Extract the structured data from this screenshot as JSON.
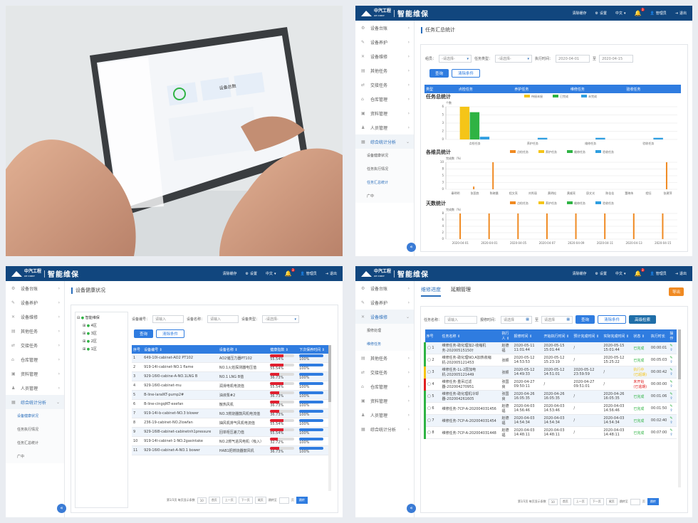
{
  "brand": {
    "logo": "中汽工程",
    "logo_sub": "AE CORP",
    "app": "智能维保"
  },
  "topbar": {
    "cleanup": "清除缓存",
    "settings": "设置",
    "lang": "中文",
    "notif": "3",
    "user": "管理员",
    "logout": "退出"
  },
  "photo": {
    "tablet_widget": "设备总数",
    "tablet_number": "1/7"
  },
  "menu": [
    {
      "icon": "gear-icon",
      "label": "设备台账"
    },
    {
      "icon": "wrench-icon",
      "label": "设备养护"
    },
    {
      "icon": "tools-icon",
      "label": "设备维修"
    },
    {
      "icon": "doc-icon",
      "label": "其他任务"
    },
    {
      "icon": "swap-icon",
      "label": "交接任务"
    },
    {
      "icon": "warehouse-icon",
      "label": "仓库管理"
    },
    {
      "icon": "folder-icon",
      "label": "资料管理"
    },
    {
      "icon": "people-icon",
      "label": "人员管理"
    },
    {
      "icon": "chart-icon",
      "label": "综合统计分析"
    }
  ],
  "stats_sub": [
    "设备健康状况",
    "任务执行情况",
    "任务汇总统计",
    "广中"
  ],
  "repair_sub": [
    "报修处理",
    "维修任务"
  ],
  "q2": {
    "crumb": "任务汇总统计",
    "filters": {
      "group_label": "组员：",
      "group_val": "-请选择-",
      "type_label": "任务类型：",
      "type_val": "-请选择-",
      "time_label": "执行时间：",
      "date_from": "2020-04-01",
      "sep": "至",
      "date_to": "2020-04-15"
    },
    "query": "查询",
    "clear": "清除条件",
    "head": [
      "类型",
      "点检任务",
      "养护任务",
      "维修任务",
      "验收任务"
    ],
    "c1": {
      "title": "任务总统计",
      "ylabel": "个数",
      "legend": [
        "待接未接",
        "已完成",
        "未完成"
      ],
      "groups": [
        "点检任务",
        "养护任务",
        "维修任务",
        "验收任务"
      ]
    },
    "c2": {
      "title": "各维员统计",
      "ylabel": "完成数（%）",
      "legend": [
        "点检任务",
        "养护任务",
        "维修任务",
        "验收任务"
      ],
      "names": [
        "秦明明",
        "张国良",
        "陈晓晨",
        "程文亮",
        "刘秀丽",
        "黄明松",
        "黄顺亮",
        "邱文光",
        "陈佳佳",
        "董晓伟",
        "程钰",
        "张建萍"
      ]
    },
    "c3": {
      "title": "天数统计",
      "ylabel": "完成数（%）",
      "legend": [
        "点检任务",
        "养护任务",
        "维修任务",
        "验收任务"
      ],
      "dates": [
        "2020-04-01",
        "2020-04-01",
        "2020-04-05",
        "2020-04-07",
        "2020-04-09",
        "2020-04-11",
        "2020-04-13",
        "2020-04-15"
      ]
    }
  },
  "q3": {
    "crumb": "设备健康状况",
    "tree": {
      "root": "智能维保",
      "nodes": [
        "4区",
        "3区",
        "2区",
        "1区"
      ]
    },
    "filters": {
      "no_label": "设备编号：",
      "no_ph": "请输入",
      "name_label": "设备名称：",
      "name_ph": "请输入",
      "type_label": "设备类型：",
      "type_val": "-请选择-"
    },
    "query": "查询",
    "clear": "清除条件",
    "cols": [
      "序号",
      "设备编号 ⇕",
      "设备名称 ⇕",
      "健康指数 ⇕",
      "下次保养时间 ⇕"
    ],
    "rows": [
      {
        "no": "1",
        "code": "649-10I-cabinet-AO2 PT102",
        "name": "AO2储压力器PT102",
        "health": "55.54%",
        "next": "100%"
      },
      {
        "no": "2",
        "code": "919-14I-cabinet-NO.1 flame",
        "name": "NO.1火焰探测器电压值",
        "health": "55.54%",
        "next": "100%"
      },
      {
        "no": "3",
        "code": "929-16I0-cabine-A-NO.1LNG B",
        "name": "NO.1 LNG B值",
        "health": "36.73%",
        "next": "100%"
      },
      {
        "no": "4",
        "code": "929-16I0-cabinet-mu",
        "name": "润滑电机电流值",
        "health": "55.54%",
        "next": "100%"
      },
      {
        "no": "5",
        "code": "B-line-laraIKT-pump2#",
        "name": "油液泵#2",
        "health": "36.73%",
        "next": "100%"
      },
      {
        "no": "6",
        "code": "B-line-cingqIKT-exefan",
        "name": "散热风机",
        "health": "36.73%",
        "next": "100%"
      },
      {
        "no": "7",
        "code": "919-14I-b-cabinet-NO.3 blower",
        "name": "NO.3燃烧器鼓风机电流值",
        "health": "36.73%",
        "next": "100%"
      },
      {
        "no": "8",
        "code": "236-19-cabinet-NO.2lowfan",
        "name": "抽风机排气风机电流值",
        "health": "55.54%",
        "next": "100%"
      },
      {
        "no": "9",
        "code": "929-16I8-cabinet-cabinetnh1pressure",
        "name": "回单柜压差力值",
        "health": "55.54%",
        "next": "100%"
      },
      {
        "no": "10",
        "code": "919-14I-cabinet-1-NO.2gasintake",
        "name": "NO.2燃气进风电机（吸入）",
        "health": "32.72%",
        "next": "100%"
      },
      {
        "no": "11",
        "code": "929-16I0-cabinet-A-NO.1 bower",
        "name": "HAB1把燃烧器鼓风机",
        "health": "36.73%",
        "next": "100%"
      }
    ],
    "pager": {
      "info": "第1/3页  每页显示条数",
      "size": "10",
      "first": "首页",
      "prev": "上一页",
      "next": "下一页",
      "last": "尾页",
      "jump": "跳转至",
      "page": "页",
      "go": "跳转"
    }
  },
  "q4": {
    "tabs": [
      "维修进度",
      "延期管理"
    ],
    "export": "导出",
    "filters": {
      "name_label": "任务名称：",
      "name_ph": "请输入",
      "time_label": "报修时间：",
      "from_ph": "请选择",
      "sep": "至",
      "to_ph": "请选择"
    },
    "query": "查询",
    "clear": "清除条件",
    "adv": "高级检索",
    "cols": [
      "序号",
      "任务名称 ⇕",
      "执行人 ⇕",
      "报修时间 ⇕",
      "开始执行时间 ⇕",
      "预计完成时间 ⇕",
      "实际完成时间 ⇕",
      "状态 ⇕",
      "执行时长",
      "操作"
    ],
    "rows": [
      {
        "no": "1",
        "flag": "#2fb344",
        "name": "维修任务-助化理加2-收缩机务-20200515150†",
        "who": "赵德福",
        "rep": "2020-05-11 11:01:44",
        "start": "2020-05-15 15:01:44",
        "plan": "/",
        "done": "2020-05-15 15:01:44",
        "state": "已完成",
        "sc": "#2fb344",
        "dur": "00:00:01"
      },
      {
        "no": "2",
        "flag": "#2fb344",
        "name": "维修任务-助化理NO.A加热收缩机-202005121453",
        "who": "张颖",
        "rep": "2020-05-12 14:53:53",
        "start": "2020-05-12 15:23:19",
        "plan": "/",
        "done": "2020-05-12 15:25:22",
        "state": "已完成",
        "sc": "#2fb344",
        "dur": "00:05:03"
      },
      {
        "no": "3",
        "flag": "#f5c518",
        "name": "维修任务-1L-2层加电机-202005121449",
        "who": "张颖",
        "rep": "2020-05-12 14:49:33",
        "start": "2020-05-12 14:51:01",
        "plan": "2020-05-12 23:59:59",
        "done": "/",
        "state": "执行中(已超期)",
        "sc": "#f5c518",
        "dur": "00:00:42"
      },
      {
        "no": "4",
        "flag": "#e02020",
        "name": "维修任务-重吊过滤器-202004270951",
        "who": "张国良",
        "rep": "2020-04-27 09:50:11",
        "start": "/",
        "plan": "2020-04-27 09:51:01",
        "done": "/",
        "state": "未开始(已逾期)",
        "sc": "#e02020",
        "dur": "00:00:00"
      },
      {
        "no": "5",
        "flag": "#2fb344",
        "name": "维修任务-助化理机冷却器-202004261605",
        "who": "张国良",
        "rep": "2020-04-26 16:05:35",
        "start": "2020-04-26 16:05:35",
        "plan": "/",
        "done": "2020-04-26 16:05:35",
        "state": "已完成",
        "sc": "#2fb344",
        "dur": "00:01:06"
      },
      {
        "no": "6",
        "flag": "#2fb344",
        "name": "维修任务-7CP-A-202004031456",
        "who": "赵德福",
        "rep": "2020-04-03 14:56:46",
        "start": "2020-04-03 14:53:46",
        "plan": "/",
        "done": "2020-04-03 14:56:46",
        "state": "已完成",
        "sc": "#2fb344",
        "dur": "00:01:50"
      },
      {
        "no": "7",
        "flag": "#2fb344",
        "name": "维修任务-7CP-A-202004031454",
        "who": "赵德福",
        "rep": "2020-04-03 14:54:34",
        "start": "2020-04-03 14:54:34",
        "plan": "/",
        "done": "2020-04-03 14:54:34",
        "state": "已完成",
        "sc": "#2fb344",
        "dur": "00:02:40"
      },
      {
        "no": "8",
        "flag": "#2fb344",
        "name": "维修任务-7CP-A-202004031448",
        "who": "赵德福",
        "rep": "2020-04-03 14:48:11",
        "start": "2020-04-03 14:48:11",
        "plan": "/",
        "done": "2020-04-03 14:48:11",
        "state": "已完成",
        "sc": "#2fb344",
        "dur": "00:07:00"
      }
    ],
    "pager": {
      "info": "第1/3页  每页显示条数",
      "size": "10",
      "first": "首页",
      "prev": "上一页",
      "next": "下一页",
      "last": "尾页",
      "jump": "跳转至",
      "page": "页",
      "go": "跳转"
    }
  },
  "colors": {
    "primary": "#11467e",
    "accent": "#2f7ce0",
    "orange": "#f08a22",
    "yellow": "#f5c518",
    "green": "#2fb344",
    "blue": "#2f9ee0"
  },
  "chart_data": [
    {
      "type": "bar",
      "title": "任务总统计",
      "ylabel": "个数",
      "categories": [
        "点检任务",
        "养护任务",
        "维修任务",
        "验收任务"
      ],
      "series": [
        {
          "name": "待接未接",
          "values": [
            6,
            0,
            0,
            0
          ]
        },
        {
          "name": "已完成",
          "values": [
            5,
            0,
            0,
            0
          ]
        },
        {
          "name": "未完成",
          "values": [
            0.5,
            0.3,
            0.3,
            0.3
          ]
        }
      ]
    },
    {
      "type": "bar",
      "title": "各维员统计",
      "ylabel": "完成数（%）",
      "categories": [
        "秦明明",
        "张国良",
        "陈晓晨",
        "程文亮",
        "刘秀丽",
        "黄明松",
        "黄顺亮",
        "邱文光",
        "陈佳佳",
        "董晓伟",
        "程钰",
        "张建萍"
      ],
      "series": [
        {
          "name": "点检任务",
          "values": [
            0,
            1,
            10,
            0,
            0,
            0,
            0,
            0,
            0,
            0,
            0,
            10
          ]
        },
        {
          "name": "养护任务",
          "values": [
            0,
            0,
            0,
            0,
            0,
            0,
            0,
            0,
            0,
            0,
            0,
            0
          ]
        }
      ]
    },
    {
      "type": "bar",
      "title": "天数统计",
      "ylabel": "完成数（%）",
      "categories": [
        "2020-04-01",
        "2020-04-01",
        "2020-04-05",
        "2020-04-07",
        "2020-04-09",
        "2020-04-11",
        "2020-04-13",
        "2020-04-15"
      ],
      "series": [
        {
          "name": "点检任务",
          "values": [
            8,
            8,
            8,
            8,
            8,
            8,
            8,
            8
          ]
        }
      ]
    }
  ]
}
